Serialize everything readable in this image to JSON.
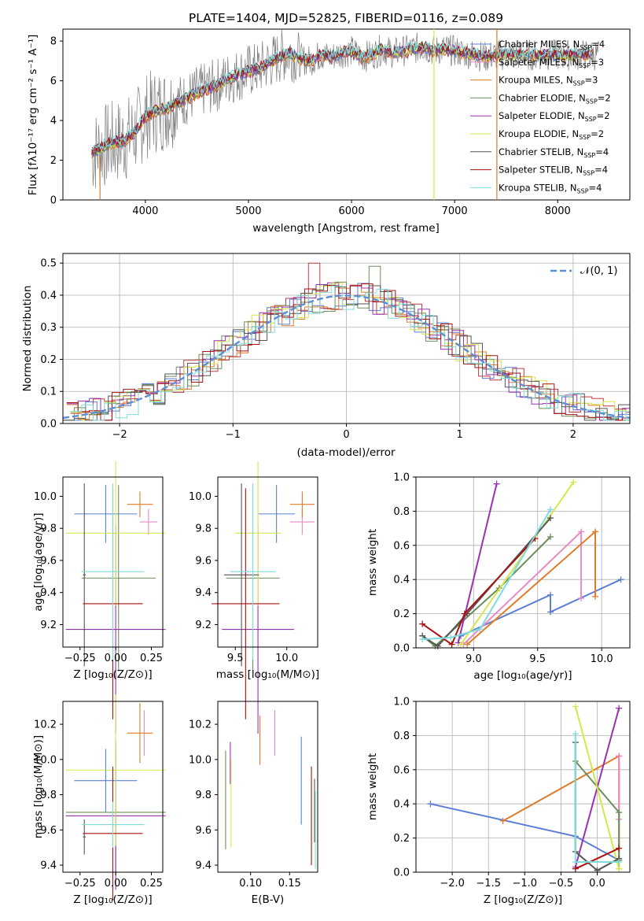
{
  "title": "PLATE=1404, MJD=52825, FIBERID=0116, z=0.089",
  "colors": {
    "obs": "#7f7f7f",
    "models": [
      "#5B7FD6",
      "#E07B2A",
      "#C23C3C",
      "#6B8E5A",
      "#9B30B0",
      "#D4E84A",
      "#555555",
      "#AA1111",
      "#7FDCDC"
    ],
    "pink": "#E88AC6",
    "gauss": "#5B8FD6"
  },
  "chart_data": [
    {
      "type": "line",
      "id": "spectrum",
      "xlabel": "wavelength [Angstrom, rest frame]",
      "ylabel": "Flux [fλ10⁻¹⁷ erg cm⁻² s⁻¹ A⁻¹]",
      "xlim": [
        3200,
        8700
      ],
      "ylim": [
        0,
        8.6
      ],
      "xticks": [
        4000,
        5000,
        6000,
        7000,
        8000
      ],
      "yticks": [
        0,
        2,
        4,
        6,
        8
      ],
      "legend_position": "right",
      "legend": [
        {
          "pre": "Chabrier MILES, N",
          "sub": "SSP",
          "post": "=4",
          "color": "#5B7FD6"
        },
        {
          "pre": "Salpeter MILES, N",
          "sub": "SSP",
          "post": "=3",
          "color": "#E88AC6"
        },
        {
          "pre": "Kroupa MILES, N",
          "sub": "SSP",
          "post": "=3",
          "color": "#E07B2A"
        },
        {
          "pre": "Chabrier ELODIE, N",
          "sub": "SSP",
          "post": "=2",
          "color": "#6B8E5A"
        },
        {
          "pre": "Salpeter ELODIE, N",
          "sub": "SSP",
          "post": "=2",
          "color": "#9B30B0"
        },
        {
          "pre": "Kroupa ELODIE, N",
          "sub": "SSP",
          "post": "=2",
          "color": "#D4E84A"
        },
        {
          "pre": "Chabrier STELIB, N",
          "sub": "SSP",
          "post": "=4",
          "color": "#555555"
        },
        {
          "pre": "Salpeter STELIB, N",
          "sub": "SSP",
          "post": "=4",
          "color": "#AA1111"
        },
        {
          "pre": "Kroupa STELIB, N",
          "sub": "SSP",
          "post": "=4",
          "color": "#7FDCDC"
        }
      ],
      "model_curve": {
        "x": [
          3500,
          3600,
          3700,
          3800,
          3900,
          4000,
          4100,
          4200,
          4300,
          4400,
          4500,
          4600,
          4700,
          4800,
          4900,
          5000,
          5100,
          5200,
          5300,
          5400,
          5500,
          5600,
          5700,
          5800,
          5900,
          6000,
          6100,
          6200,
          6300,
          6400,
          6500,
          6600,
          6700,
          6800,
          6900,
          7000,
          7100,
          7200,
          7300,
          7400
        ],
        "y": [
          2.4,
          2.7,
          2.9,
          3.0,
          3.4,
          4.2,
          4.5,
          4.6,
          4.9,
          5.1,
          5.4,
          5.6,
          5.8,
          6.1,
          6.3,
          6.5,
          6.6,
          6.9,
          7.2,
          7.4,
          7.1,
          7.0,
          7.3,
          7.2,
          7.4,
          7.5,
          7.2,
          7.3,
          7.6,
          7.4,
          7.5,
          7.6,
          7.7,
          7.5,
          7.6,
          7.5,
          7.4,
          7.3,
          7.2,
          7.3
        ]
      }
    },
    {
      "type": "step",
      "id": "residuals",
      "xlabel": "(data-model)/error",
      "ylabel": "Normed distribution",
      "xlim": [
        -2.5,
        2.5
      ],
      "ylim": [
        0,
        0.53
      ],
      "xticks": [
        -2,
        -1,
        0,
        1,
        2
      ],
      "yticks": [
        0.0,
        0.1,
        0.2,
        0.3,
        0.4,
        0.5
      ],
      "legend": {
        "label": "𝒩(0, 1)",
        "style": "dashed"
      },
      "legend_position": "top-right",
      "grid": true
    },
    {
      "type": "errorbar",
      "id": "age-vs-Z",
      "xlabel": "Z [log₁₀(Z/Z⊙)]",
      "ylabel": "age  [log₁₀(age/yr)]",
      "xlim": [
        -0.37,
        0.33
      ],
      "ylim": [
        9.06,
        10.12
      ],
      "xticks": [
        -0.25,
        0.0,
        0.25
      ],
      "xticklabels": [
        "−0.25",
        "0.00",
        "0.25"
      ],
      "yticks": [
        9.2,
        9.4,
        9.6,
        9.8,
        10.0
      ],
      "points": [
        {
          "c": "#5B7FD6",
          "x": -0.07,
          "xe": 0.22,
          "y": 9.89,
          "ye": 0.18
        },
        {
          "c": "#E88AC6",
          "x": 0.23,
          "xe": 0.06,
          "y": 9.84,
          "ye": 0.08
        },
        {
          "c": "#E07B2A",
          "x": 0.17,
          "xe": 0.09,
          "y": 9.95,
          "ye": 0.08
        },
        {
          "c": "#6B8E5A",
          "x": 0.02,
          "xe": 0.26,
          "y": 9.49,
          "ye": 0.58
        },
        {
          "c": "#9B30B0",
          "x": 0.0,
          "xe": 0.35,
          "y": 9.17,
          "ye": 0.65
        },
        {
          "c": "#D4E84A",
          "x": 0.0,
          "xe": 0.35,
          "y": 9.77,
          "ye": 0.45
        },
        {
          "c": "#555555",
          "x": -0.22,
          "xe": 0.01,
          "y": 9.51,
          "ye": 0.57
        },
        {
          "c": "#AA1111",
          "x": -0.02,
          "xe": 0.21,
          "y": 9.33,
          "ye": 0.72
        },
        {
          "c": "#7FDCDC",
          "x": -0.02,
          "xe": 0.22,
          "y": 9.53,
          "ye": 0.55
        }
      ]
    },
    {
      "type": "errorbar",
      "id": "age-vs-mass",
      "xlabel": "mass [log₁₀(M/M⊙)]",
      "xlim": [
        9.33,
        10.3
      ],
      "ylim": [
        9.06,
        10.12
      ],
      "xticks": [
        9.5,
        10.0
      ],
      "yticks": [
        9.2,
        9.4,
        9.6,
        9.8,
        10.0
      ],
      "points": [
        {
          "c": "#5B7FD6",
          "x": 9.9,
          "xe": 0.18,
          "y": 9.89,
          "ye": 0.18
        },
        {
          "c": "#E88AC6",
          "x": 10.15,
          "xe": 0.12,
          "y": 9.84,
          "ye": 0.08
        },
        {
          "c": "#E07B2A",
          "x": 10.15,
          "xe": 0.12,
          "y": 9.95,
          "ye": 0.08
        },
        {
          "c": "#6B8E5A",
          "x": 9.67,
          "xe": 0.26,
          "y": 9.49,
          "ye": 0.58
        },
        {
          "c": "#9B30B0",
          "x": 9.72,
          "xe": 0.35,
          "y": 9.17,
          "ye": 0.65
        },
        {
          "c": "#D4E84A",
          "x": 9.72,
          "xe": 0.22,
          "y": 9.77,
          "ye": 0.45
        },
        {
          "c": "#555555",
          "x": 9.56,
          "xe": 0.17,
          "y": 9.51,
          "ye": 0.57
        },
        {
          "c": "#AA1111",
          "x": 9.6,
          "xe": 0.33,
          "y": 9.33,
          "ye": 0.72
        },
        {
          "c": "#7FDCDC",
          "x": 9.67,
          "xe": 0.22,
          "y": 9.53,
          "ye": 0.55
        }
      ]
    },
    {
      "type": "line",
      "id": "mass-weight-vs-age",
      "xlabel": "age  [log₁₀(age/yr)]",
      "ylabel": "mass weight",
      "xlim": [
        8.55,
        10.22
      ],
      "ylim": [
        0,
        1.0
      ],
      "xticks": [
        9.0,
        9.5,
        10.0
      ],
      "yticks": [
        0.0,
        0.2,
        0.4,
        0.6,
        0.8,
        1.0
      ],
      "grid": true,
      "series": [
        {
          "c": "#5B7FD6",
          "x": [
            8.9,
            9.6,
            9.6,
            10.15
          ],
          "y": [
            0.07,
            0.31,
            0.21,
            0.4
          ]
        },
        {
          "c": "#E88AC6",
          "x": [
            8.92,
            9.84,
            9.84
          ],
          "y": [
            0.02,
            0.68,
            0.29
          ]
        },
        {
          "c": "#E07B2A",
          "x": [
            8.95,
            9.95,
            9.95
          ],
          "y": [
            0.02,
            0.68,
            0.3
          ]
        },
        {
          "c": "#6B8E5A",
          "x": [
            8.6,
            8.7,
            9.2,
            9.6
          ],
          "y": [
            0.07,
            0.01,
            0.35,
            0.65
          ]
        },
        {
          "c": "#9B30B0",
          "x": [
            8.88,
            9.18
          ],
          "y": [
            0.03,
            0.96
          ]
        },
        {
          "c": "#D4E84A",
          "x": [
            8.9,
            9.78
          ],
          "y": [
            0.02,
            0.97
          ]
        },
        {
          "c": "#555555",
          "x": [
            8.6,
            8.72,
            8.95,
            9.6
          ],
          "y": [
            0.07,
            0.01,
            0.2,
            0.76
          ]
        },
        {
          "c": "#AA1111",
          "x": [
            8.6,
            8.83,
            8.93,
            9.48
          ],
          "y": [
            0.14,
            0.02,
            0.2,
            0.64
          ]
        },
        {
          "c": "#7FDCDC",
          "x": [
            8.6,
            8.82,
            9.05,
            9.6
          ],
          "y": [
            0.05,
            0.06,
            0.11,
            0.81
          ]
        }
      ]
    },
    {
      "type": "errorbar",
      "id": "mass-vs-Z",
      "xlabel": "Z [log₁₀(Z/Z⊙)]",
      "ylabel": "mass [log₁₀(M/M⊙)]",
      "xlim": [
        -0.37,
        0.33
      ],
      "ylim": [
        9.36,
        10.33
      ],
      "xticks": [
        -0.25,
        0.0,
        0.25
      ],
      "xticklabels": [
        "−0.25",
        "0.00",
        "0.25"
      ],
      "yticks": [
        9.4,
        9.6,
        9.8,
        10.0,
        10.2
      ],
      "points": [
        {
          "c": "#5B7FD6",
          "x": -0.07,
          "xe": 0.22,
          "y": 9.88,
          "ye": 0.18
        },
        {
          "c": "#E88AC6",
          "x": 0.2,
          "xe": 0.0,
          "y": 10.15,
          "ye": 0.13
        },
        {
          "c": "#E07B2A",
          "x": 0.17,
          "xe": 0.09,
          "y": 10.15,
          "ye": 0.17
        },
        {
          "c": "#6B8E5A",
          "x": 0.0,
          "xe": 0.35,
          "y": 9.7,
          "ye": 0.35
        },
        {
          "c": "#9B30B0",
          "x": 0.0,
          "xe": 0.35,
          "y": 9.68,
          "ye": 0.42
        },
        {
          "c": "#D4E84A",
          "x": 0.0,
          "xe": 0.35,
          "y": 9.94,
          "ye": 0.43
        },
        {
          "c": "#555555",
          "x": -0.22,
          "xe": 0.01,
          "y": 9.56,
          "ye": 0.1
        },
        {
          "c": "#AA1111",
          "x": -0.02,
          "xe": 0.21,
          "y": 9.58,
          "ye": 0.38
        },
        {
          "c": "#7FDCDC",
          "x": -0.02,
          "xe": 0.22,
          "y": 9.63,
          "ye": 0.13
        }
      ]
    },
    {
      "type": "errorbar",
      "id": "mass-vs-EBV",
      "xlabel": "E(B-V)",
      "xlim": [
        0.058,
        0.186
      ],
      "ylim": [
        9.36,
        10.33
      ],
      "xticks": [
        0.1,
        0.15
      ],
      "xticklabels": [
        "0.10",
        "0.15"
      ],
      "yticks": [
        9.4,
        9.6,
        9.8,
        10.0,
        10.2
      ],
      "points": [
        {
          "c": "#5B7FD6",
          "x": 0.165,
          "y": 9.88,
          "ye": 0.25
        },
        {
          "c": "#E88AC6",
          "x": 0.131,
          "y": 10.15,
          "ye": 0.13
        },
        {
          "c": "#E07B2A",
          "x": 0.112,
          "y": 10.11,
          "ye": 0.14
        },
        {
          "c": "#6B8E5A",
          "x": 0.068,
          "y": 9.77,
          "ye": 0.28
        },
        {
          "c": "#9B30B0",
          "x": 0.074,
          "y": 9.98,
          "ye": 0.12
        },
        {
          "c": "#D4E84A",
          "x": 0.075,
          "y": 9.75,
          "ye": 0.25
        },
        {
          "c": "#555555",
          "x": 0.182,
          "y": 9.71,
          "ye": 0.18
        },
        {
          "c": "#AA1111",
          "x": 0.178,
          "y": 9.68,
          "ye": 0.28
        },
        {
          "c": "#7FDCDC",
          "x": 0.183,
          "y": 9.6,
          "ye": 0.22
        }
      ]
    },
    {
      "type": "line",
      "id": "mass-weight-vs-Z",
      "xlabel": "Z [log₁₀(Z/Z⊙)]",
      "ylabel": "mass weight",
      "xlim": [
        -2.5,
        0.45
      ],
      "ylim": [
        0,
        1.0
      ],
      "xticks": [
        -2.0,
        -1.5,
        -1.0,
        -0.5,
        0.0
      ],
      "xticklabels": [
        "−2.0",
        "−1.5",
        "−1.0",
        "−0.5",
        "0.0"
      ],
      "yticks": [
        0.0,
        0.2,
        0.4,
        0.6,
        0.8,
        1.0
      ],
      "grid": true,
      "series": [
        {
          "c": "#5B7FD6",
          "x": [
            -2.3,
            -0.3,
            0.3
          ],
          "y": [
            0.4,
            0.21,
            0.07
          ]
        },
        {
          "c": "#E07B2A",
          "x": [
            -1.3,
            0.3,
            0.3
          ],
          "y": [
            0.3,
            0.68,
            0.02
          ]
        },
        {
          "c": "#E88AC6",
          "x": [
            0.3,
            0.3
          ],
          "y": [
            0.68,
            0.31
          ]
        },
        {
          "c": "#6B8E5A",
          "x": [
            -0.3,
            0.3,
            0.3
          ],
          "y": [
            0.65,
            0.35,
            0.07
          ]
        },
        {
          "c": "#9B30B0",
          "x": [
            -0.3,
            0.3
          ],
          "y": [
            0.03,
            0.96
          ]
        },
        {
          "c": "#D4E84A",
          "x": [
            -0.3,
            0.3
          ],
          "y": [
            0.97,
            0.02
          ]
        },
        {
          "c": "#555555",
          "x": [
            -0.3,
            -0.3,
            0.0,
            0.3
          ],
          "y": [
            0.76,
            0.12,
            0.01,
            0.08
          ]
        },
        {
          "c": "#AA1111",
          "x": [
            -0.3,
            0.3
          ],
          "y": [
            0.02,
            0.14
          ]
        },
        {
          "c": "#7FDCDC",
          "x": [
            -0.3,
            -0.3,
            0.3
          ],
          "y": [
            0.81,
            0.06,
            0.06
          ]
        }
      ]
    }
  ]
}
